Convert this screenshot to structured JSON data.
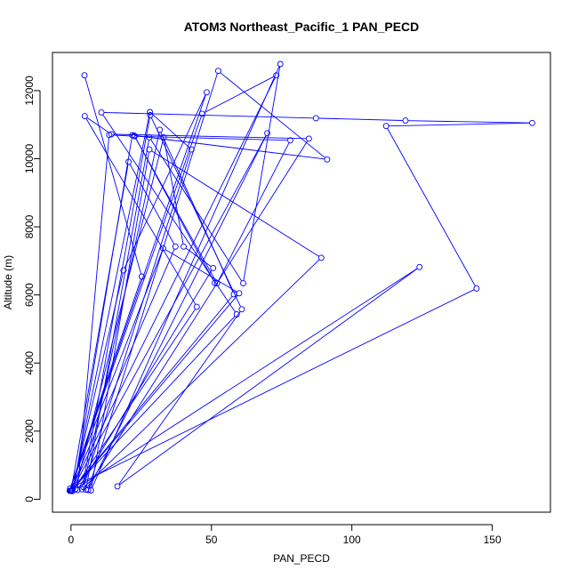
{
  "chart_data": {
    "type": "scatter",
    "title": "ATOM3 Northeast_Pacific_1 PAN_PECD",
    "xlabel": "PAN_PECD",
    "ylabel": "Altitude (m)",
    "xlim": [
      -6.6,
      170.7
    ],
    "ylim": [
      -380,
      13120
    ],
    "xticks": [
      0,
      50,
      100,
      150
    ],
    "yticks": [
      0,
      2000,
      4000,
      6000,
      8000,
      10000,
      12000
    ],
    "grid": false,
    "legend": "none",
    "connect_points": true,
    "marker": "open-circle",
    "color": "#0000ff",
    "series": [
      {
        "x": [
          4.8,
          25.2,
          -0.3,
          32.8,
          59.9,
          0.5,
          18.7,
          48.3,
          -0.5,
          46.7,
          73.1,
          -0.2,
          37.2,
          20.5,
          0.0,
          59.0,
          10.8,
          87.2,
          119.1,
          164.2,
          112.2,
          144.4,
          1.1,
          21.8,
          91.2,
          52.4,
          6.1,
          69.9,
          0.2,
          58.0,
          31.6,
          4.4,
          42.9,
          28.1,
          0.5,
          44.8,
          4.9,
          14.4,
          84.7,
          5.3,
          27.9,
          61.3,
          74.5,
          7.1,
          27.9,
          89.1,
          3.9,
          28.2,
          60.8,
          16.5,
          124.1,
          1.6,
          33.0,
          40.1,
          50.6,
          2.3,
          13.6,
          22.7,
          78.1,
          52.0,
          22.5,
          51.2
        ],
        "y": [
          12450,
          6540,
          320,
          7370,
          6050,
          280,
          6720,
          11950,
          250,
          11320,
          12450,
          250,
          7420,
          9910,
          250,
          5430,
          11360,
          11190,
          11120,
          11050,
          10960,
          6190,
          380,
          10690,
          9980,
          12580,
          270,
          10750,
          260,
          6020,
          10850,
          360,
          10270,
          11370,
          240,
          5650,
          11250,
          10720,
          10590,
          280,
          10630,
          6340,
          12780,
          260,
          10270,
          7090,
          290,
          11280,
          5580,
          380,
          6820,
          300,
          10630,
          7420,
          6790,
          270,
          10700,
          10660,
          10540,
          6340,
          10680,
          6350
        ]
      }
    ]
  }
}
